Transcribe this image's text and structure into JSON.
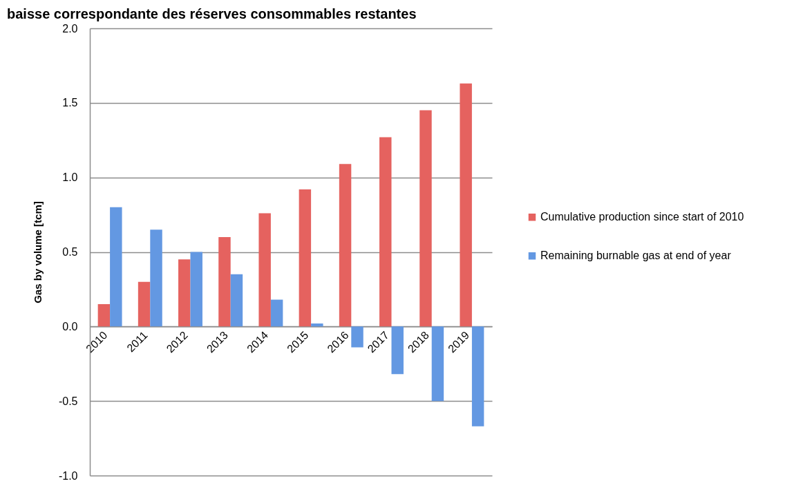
{
  "chart_data": {
    "type": "bar",
    "title": "baisse correspondante des réserves consommables restantes",
    "ylabel": "Gas by volume [tcm]",
    "categories": [
      "2010",
      "2011",
      "2012",
      "2013",
      "2014",
      "2015",
      "2016",
      "2017",
      "2018",
      "2019"
    ],
    "series": [
      {
        "name": "Cumulative production since start of 2010",
        "color": "#e5625f",
        "values": [
          0.15,
          0.3,
          0.45,
          0.6,
          0.76,
          0.92,
          1.09,
          1.27,
          1.45,
          1.63
        ]
      },
      {
        "name": "Remaining burnable gas at end of year",
        "color": "#6398e2",
        "values": [
          0.8,
          0.65,
          0.5,
          0.35,
          0.18,
          0.02,
          -0.14,
          -0.32,
          -0.5,
          -0.67
        ]
      }
    ],
    "ylim": [
      -1.0,
      2.0
    ],
    "yticks": [
      {
        "value": -1.0,
        "label": "-1.0"
      },
      {
        "value": -0.5,
        "label": "-0.5"
      },
      {
        "value": 0,
        "label": "0.0"
      },
      {
        "value": 0.5,
        "label": "0.5"
      },
      {
        "value": 1.0,
        "label": "1.0"
      },
      {
        "value": 1.5,
        "label": "1.5"
      },
      {
        "value": 2.0,
        "label": "2.0"
      }
    ],
    "grid": "y",
    "legend": "right"
  }
}
